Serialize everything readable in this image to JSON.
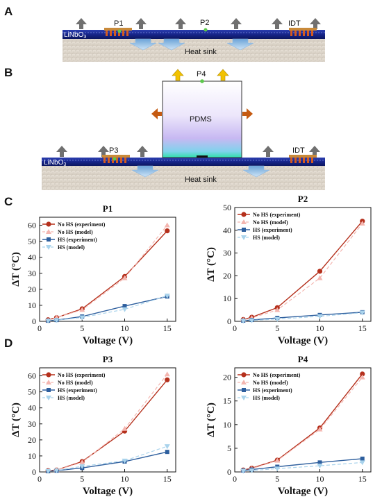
{
  "panels": {
    "A": "A",
    "B": "B",
    "C": "C",
    "D": "D"
  },
  "schematic_a": {
    "substrate": "LiNbO",
    "substrate_sub": "3",
    "heat_sink": "Heat sink",
    "p1": "P1",
    "p2": "P2",
    "idt": "IDT"
  },
  "schematic_b": {
    "substrate": "LiNbO",
    "substrate_sub": "3",
    "heat_sink": "Heat sink",
    "p3": "P3",
    "p4": "P4",
    "pdms": "PDMS",
    "idt": "IDT"
  },
  "colors": {
    "no_hs_experiment": "#b5301c",
    "no_hs_model": "#f4b6b0",
    "hs_experiment": "#2e5f9e",
    "hs_model": "#a9d3ec",
    "substrate": "#1f2f8f",
    "heat_sink": "#ddd6cc",
    "arrow_grey": "#707070",
    "arrow_yellow": "#f2c200",
    "arrow_orange": "#c55a11"
  },
  "chart_data": [
    {
      "type": "line",
      "title": "P1",
      "xlabel": "Voltage (V)",
      "ylabel": "ΔT (°C)",
      "xlim": [
        0,
        16
      ],
      "ylim": [
        0,
        65
      ],
      "xticks": [
        "0",
        "5",
        "10",
        "15"
      ],
      "yticks": [
        "0",
        "10",
        "20",
        "30",
        "40",
        "50",
        "60"
      ],
      "legend_position": "top-left",
      "series": [
        {
          "name": "No HS (experiment)",
          "x": [
            1,
            2,
            5,
            10,
            15
          ],
          "y": [
            1,
            2.3,
            7.8,
            28,
            56.5
          ]
        },
        {
          "name": "No HS (model)",
          "x": [
            1,
            2,
            5,
            10,
            15
          ],
          "y": [
            0.6,
            2.4,
            7.2,
            27,
            60
          ]
        },
        {
          "name": "HS (experiment)",
          "x": [
            1,
            2,
            5,
            10,
            15
          ],
          "y": [
            0.4,
            0.8,
            3,
            9.5,
            15.5
          ]
        },
        {
          "name": "HS (model)",
          "x": [
            1,
            2,
            5,
            10,
            15
          ],
          "y": [
            0.3,
            0.7,
            2.4,
            7.5,
            16
          ]
        }
      ]
    },
    {
      "type": "line",
      "title": "P2",
      "xlabel": "Voltage (V)",
      "ylabel": "ΔT (°C)",
      "xlim": [
        0,
        16
      ],
      "ylim": [
        0,
        50
      ],
      "xticks": [
        "0",
        "5",
        "10",
        "15"
      ],
      "yticks": [
        "0",
        "10",
        "20",
        "30",
        "40",
        "50"
      ],
      "legend_position": "top-left",
      "series": [
        {
          "name": "No HS (experiment)",
          "x": [
            1,
            2,
            5,
            10,
            15
          ],
          "y": [
            0.8,
            1.8,
            6,
            22,
            44
          ]
        },
        {
          "name": "No HS (model)",
          "x": [
            1,
            2,
            5,
            10,
            15
          ],
          "y": [
            0.6,
            1.5,
            5,
            19,
            43
          ]
        },
        {
          "name": "HS (experiment)",
          "x": [
            1,
            2,
            5,
            10,
            15
          ],
          "y": [
            0.3,
            0.6,
            1.5,
            2.8,
            4
          ]
        },
        {
          "name": "HS (model)",
          "x": [
            1,
            2,
            5,
            10,
            15
          ],
          "y": [
            0.2,
            0.4,
            1,
            2.2,
            3.8
          ]
        }
      ]
    },
    {
      "type": "line",
      "title": "P3",
      "xlabel": "Voltage (V)",
      "ylabel": "ΔT (°C)",
      "xlim": [
        0,
        16
      ],
      "ylim": [
        0,
        65
      ],
      "xticks": [
        "0",
        "5",
        "10",
        "15"
      ],
      "yticks": [
        "0",
        "10",
        "20",
        "30",
        "40",
        "50",
        "60"
      ],
      "legend_position": "top-left",
      "series": [
        {
          "name": "No HS (experiment)",
          "x": [
            1,
            2,
            5,
            10,
            15
          ],
          "y": [
            0.8,
            1.2,
            6.5,
            25.5,
            57.5
          ]
        },
        {
          "name": "No HS (model)",
          "x": [
            1,
            2,
            5,
            10,
            15
          ],
          "y": [
            0.6,
            1.2,
            6,
            27,
            61
          ]
        },
        {
          "name": "HS (experiment)",
          "x": [
            1,
            2,
            5,
            10,
            15
          ],
          "y": [
            0.5,
            0.8,
            2.5,
            6.5,
            12.5
          ]
        },
        {
          "name": "HS (model)",
          "x": [
            1,
            2,
            5,
            10,
            15
          ],
          "y": [
            0.5,
            0.9,
            3.5,
            7,
            16
          ]
        }
      ]
    },
    {
      "type": "line",
      "title": "P4",
      "xlabel": "Voltage (V)",
      "ylabel": "ΔT (°C)",
      "xlim": [
        0,
        16
      ],
      "ylim": [
        0,
        22
      ],
      "xticks": [
        "0",
        "5",
        "10",
        "15"
      ],
      "yticks": [
        "0",
        "5",
        "10",
        "15",
        "20"
      ],
      "legend_position": "top-left",
      "series": [
        {
          "name": "No HS (experiment)",
          "x": [
            1,
            2,
            5,
            10,
            15
          ],
          "y": [
            0.4,
            0.8,
            2.5,
            9.3,
            20.7
          ]
        },
        {
          "name": "No HS (model)",
          "x": [
            1,
            2,
            5,
            10,
            15
          ],
          "y": [
            0.3,
            0.7,
            2.4,
            9,
            20
          ]
        },
        {
          "name": "HS (experiment)",
          "x": [
            1,
            2,
            5,
            10,
            15
          ],
          "y": [
            0.3,
            0.5,
            1.1,
            2,
            2.8
          ]
        },
        {
          "name": "HS (model)",
          "x": [
            1,
            2,
            5,
            10,
            15
          ],
          "y": [
            0.2,
            0.3,
            0.7,
            1.3,
            2
          ]
        }
      ]
    }
  ]
}
